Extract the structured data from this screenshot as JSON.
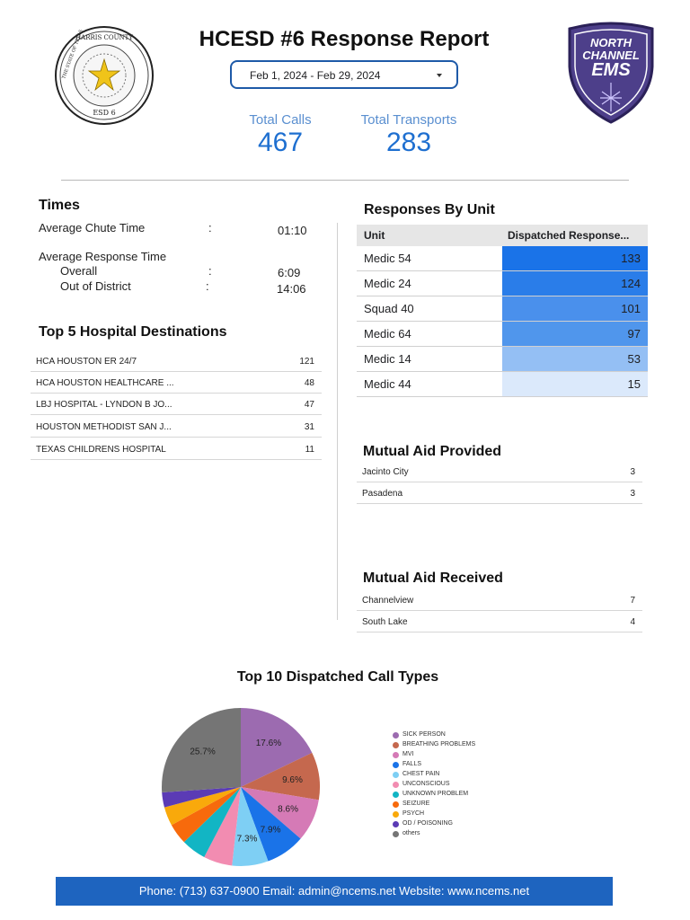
{
  "header": {
    "title": "HCESD #6 Response Report",
    "date_range": "Feb 1, 2024 - Feb 29, 2024",
    "seal": {
      "top_text": "HARRIS COUNTY",
      "ring_text": "THE STATE OF TEXAS",
      "bottom_text": "ESD 6"
    },
    "ems_logo": {
      "line1": "NORTH",
      "line2": "CHANNEL",
      "line3": "EMS"
    }
  },
  "kpis": {
    "total_calls_label": "Total Calls",
    "total_calls": "467",
    "total_transports_label": "Total Transports",
    "total_transports": "283"
  },
  "times": {
    "heading": "Times",
    "chute_label": "Average Chute Time",
    "chute_value": "01:10",
    "response_label": "Average Response Time",
    "overall_label": "Overall",
    "overall_value": "6:09",
    "ood_label": "Out of District",
    "ood_value": "14:06",
    "colon": ":"
  },
  "hospitals": {
    "heading": "Top 5 Hospital Destinations",
    "rows": [
      {
        "name": "HCA HOUSTON ER 24/7",
        "count": "121"
      },
      {
        "name": "HCA HOUSTON HEALTHCARE ...",
        "count": "48"
      },
      {
        "name": "LBJ HOSPITAL - LYNDON B JO...",
        "count": "47"
      },
      {
        "name": "HOUSTON METHODIST SAN J...",
        "count": "31"
      },
      {
        "name": "TEXAS CHILDRENS HOSPITAL",
        "count": "11"
      }
    ]
  },
  "units": {
    "heading": "Responses By Unit",
    "col_unit": "Unit",
    "col_dispatched": "Dispatched Response...",
    "rows": [
      {
        "unit": "Medic 54",
        "value": "133",
        "color": "#1a73e8"
      },
      {
        "unit": "Medic 24",
        "value": "124",
        "color": "#2a7de9"
      },
      {
        "unit": "Squad 40",
        "value": "101",
        "color": "#4a90ec"
      },
      {
        "unit": "Medic 64",
        "value": "97",
        "color": "#5096ec"
      },
      {
        "unit": "Medic 14",
        "value": "53",
        "color": "#94bff4"
      },
      {
        "unit": "Medic 44",
        "value": "15",
        "color": "#dbe9fb"
      }
    ]
  },
  "mutual_provided": {
    "heading": "Mutual Aid Provided",
    "rows": [
      {
        "name": "Jacinto City",
        "count": "3"
      },
      {
        "name": "Pasadena",
        "count": "3"
      }
    ]
  },
  "mutual_received": {
    "heading": "Mutual Aid Received",
    "rows": [
      {
        "name": "Channelview",
        "count": "7"
      },
      {
        "name": "South Lake",
        "count": "4"
      }
    ]
  },
  "chart_data": {
    "type": "pie",
    "title": "Top 10 Dispatched Call Types",
    "legend_position": "right",
    "slices": [
      {
        "label": "SICK PERSON",
        "value": 17.6,
        "display": "17.6%",
        "color": "#9c6bb0"
      },
      {
        "label": "BREATHING PROBLEMS",
        "value": 9.6,
        "display": "9.6%",
        "color": "#c5684e"
      },
      {
        "label": "MVI",
        "value": 8.6,
        "display": "8.6%",
        "color": "#d57ab6"
      },
      {
        "label": "FALLS",
        "value": 7.9,
        "display": "7.9%",
        "color": "#1a73e8"
      },
      {
        "label": "CHEST PAIN",
        "value": 7.3,
        "display": "7.3%",
        "color": "#7ecff4"
      },
      {
        "label": "UNCONSCIOUS",
        "value": 5.8,
        "display": "",
        "color": "#f28cb1"
      },
      {
        "label": "UNKNOWN PROBLEM",
        "value": 5.0,
        "display": "",
        "color": "#12b5c4"
      },
      {
        "label": "SEIZURE",
        "value": 4.2,
        "display": "",
        "color": "#f76a0c"
      },
      {
        "label": "PSYCH",
        "value": 3.8,
        "display": "",
        "color": "#f9a90b"
      },
      {
        "label": "OD / POISONING",
        "value": 3.0,
        "display": "",
        "color": "#5b3bb5"
      },
      {
        "label": "others",
        "value": 25.7,
        "display": "25.7%",
        "color": "#757575"
      }
    ]
  },
  "footer": {
    "text": "Phone: (713) 637-0900 Email: admin@ncems.net Website: www.ncems.net"
  }
}
